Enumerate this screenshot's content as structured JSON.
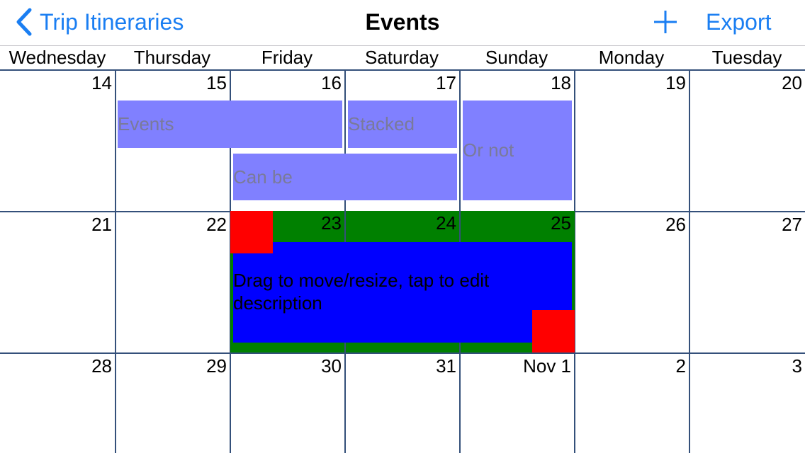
{
  "nav": {
    "back_label": "Trip Itineraries",
    "title": "Events",
    "export_label": "Export"
  },
  "colors": {
    "accent": "#1a7ef2",
    "grid_line": "#34507a",
    "event_fill": "#8080ff",
    "selected_range": "#008000",
    "selected_event": "#0000ff",
    "resize_handle": "#ff0000"
  },
  "weekdays": [
    "Wednesday",
    "Thursday",
    "Friday",
    "Saturday",
    "Sunday",
    "Monday",
    "Tuesday"
  ],
  "weeks": [
    [
      "14",
      "15",
      "16",
      "17",
      "18",
      "19",
      "20"
    ],
    [
      "21",
      "22",
      "23",
      "24",
      "25",
      "26",
      "27"
    ],
    [
      "28",
      "29",
      "30",
      "31",
      "Nov 1",
      "2",
      "3"
    ]
  ],
  "events": [
    {
      "label": "Events"
    },
    {
      "label": "Stacked"
    },
    {
      "label": "Or not"
    },
    {
      "label": "Can be"
    }
  ],
  "selected_event": {
    "label": "Drag to move/resize, tap to edit description"
  }
}
